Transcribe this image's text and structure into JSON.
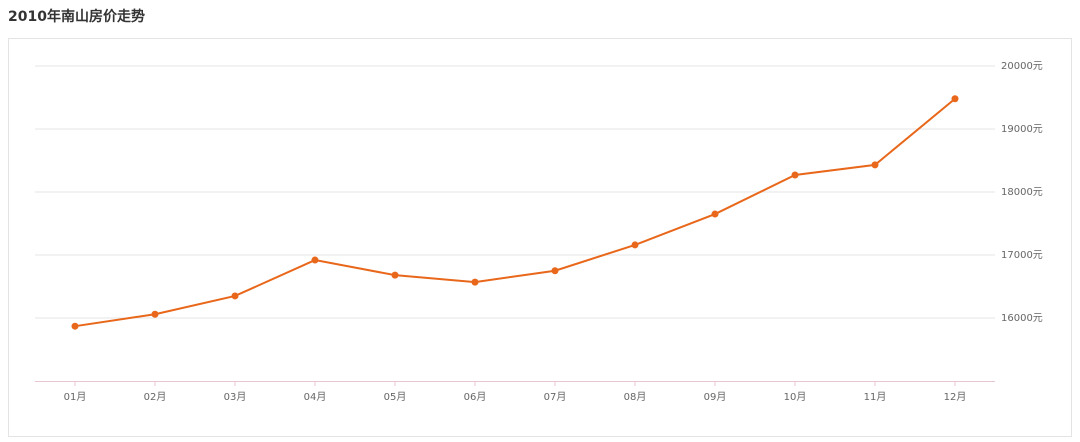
{
  "chart_data": {
    "type": "line",
    "title": "2010年南山房价走势",
    "categories": [
      "01月",
      "02月",
      "03月",
      "04月",
      "05月",
      "06月",
      "07月",
      "08月",
      "09月",
      "10月",
      "11月",
      "12月"
    ],
    "values": [
      15870,
      16060,
      16350,
      16920,
      16680,
      16570,
      16750,
      17160,
      17650,
      18270,
      18430,
      19480
    ],
    "color": "#e8671a",
    "ylim": [
      15000,
      20000
    ],
    "yticks": [
      {
        "value": 16000,
        "label": "16000元"
      },
      {
        "value": 17000,
        "label": "17000元"
      },
      {
        "value": 18000,
        "label": "18000元"
      },
      {
        "value": 19000,
        "label": "19000元"
      },
      {
        "value": 20000,
        "label": "20000元"
      }
    ],
    "grid": true
  }
}
